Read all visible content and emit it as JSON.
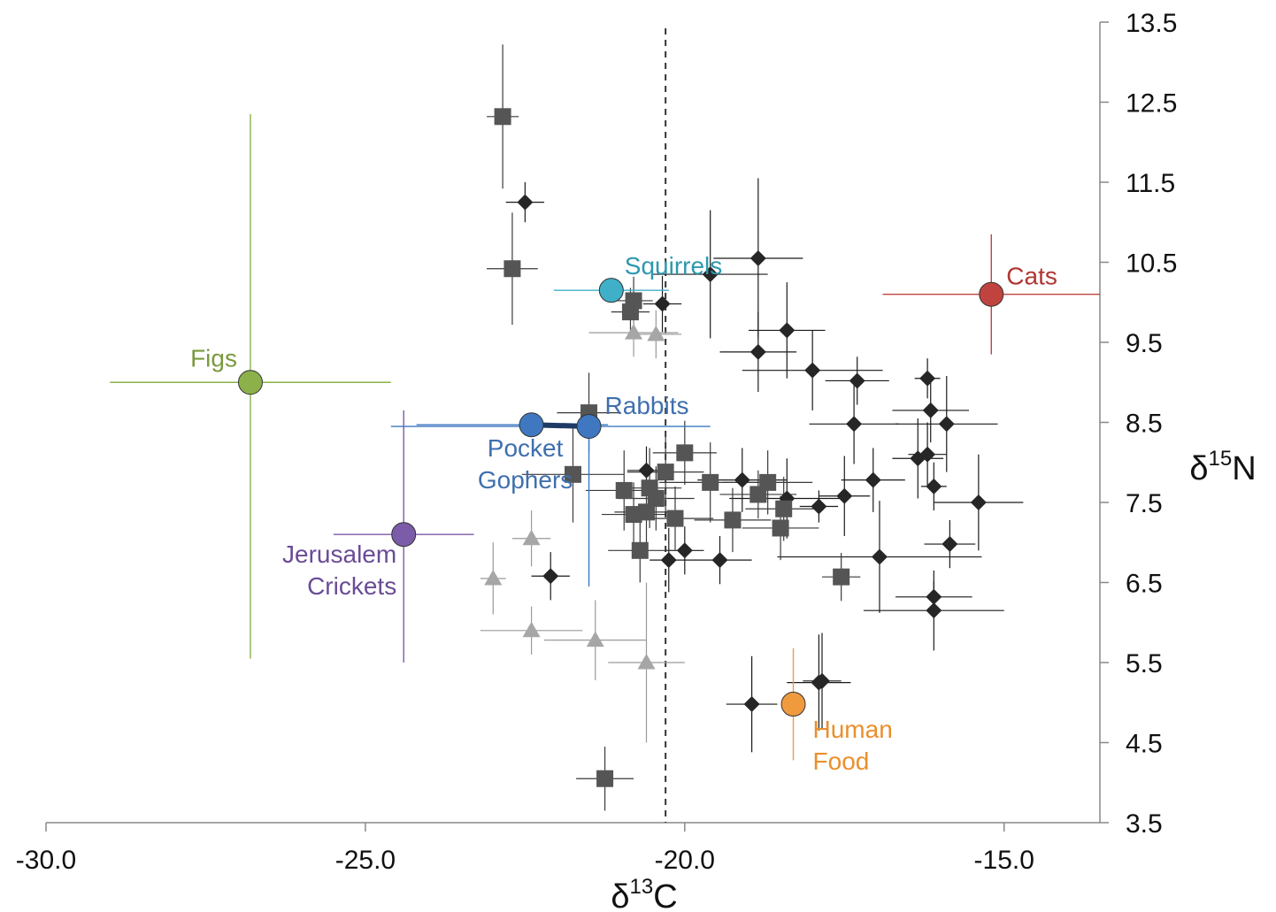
{
  "chart_data": {
    "type": "scatter",
    "xlabel": {
      "base": "δ",
      "sup": "13",
      "rest": "C"
    },
    "ylabel": {
      "base": "δ",
      "sup": "15",
      "rest": "N"
    },
    "xlim": [
      -30,
      -13.5
    ],
    "ylim": [
      3.5,
      13.5
    ],
    "x_ticks": [
      -30,
      -25,
      -20,
      -15
    ],
    "x_tick_labels": [
      "-30.0",
      "-25.0",
      "-20.0",
      "-15.0"
    ],
    "y_ticks": [
      3.5,
      4.5,
      5.5,
      6.5,
      7.5,
      8.5,
      9.5,
      10.5,
      11.5,
      12.5,
      13.5
    ],
    "y_tick_labels": [
      "3.5",
      "4.5",
      "5.5",
      "6.5",
      "7.5",
      "8.5",
      "9.5",
      "10.5",
      "11.5",
      "12.5",
      "13.5"
    ],
    "reference_line_x": -20.3,
    "grid": false,
    "legend": "none",
    "colors": {
      "diamond": "#262626",
      "square": "#555555",
      "triangle": "#a6a6a6",
      "figs": "#8cb04a",
      "squirrels": "#3fb0c8",
      "cats": "#c0433f",
      "rabbits": "#3f78c0",
      "crickets": "#7b5ca8",
      "human_food": "#f09a3e"
    },
    "groups": [
      {
        "name": "Figs",
        "label_lines": [
          "Figs"
        ],
        "color": "#8cb04a",
        "label_color": "#7a9a3e",
        "x": -26.8,
        "y": 9.0,
        "x_err_low": 2.2,
        "x_err_high": 2.2,
        "y_err_low": 3.45,
        "y_err_high": 3.35
      },
      {
        "name": "Squirrels",
        "label_lines": [
          "Squirrels"
        ],
        "color": "#3fb0c8",
        "label_color": "#2e98ae",
        "x": -21.15,
        "y": 10.15,
        "x_err_low": 0.9,
        "x_err_high": 0.9,
        "y_err_low": 0.0,
        "y_err_high": 0.0
      },
      {
        "name": "Cats",
        "label_lines": [
          "Cats"
        ],
        "color": "#c0433f",
        "label_color": "#b03632",
        "x": -15.2,
        "y": 10.1,
        "x_err_low": 1.7,
        "x_err_high": 1.7,
        "y_err_low": 0.75,
        "y_err_high": 0.75
      },
      {
        "name": "Rabbits",
        "label_lines": [
          "Rabbits"
        ],
        "color": "#3f78c0",
        "label_color": "#3f6fae",
        "x": -21.5,
        "y": 8.45,
        "x_err_low": 3.1,
        "x_err_high": 1.9,
        "y_err_low": 2.0,
        "y_err_high": 0.0
      },
      {
        "name": "Pocket Gophers",
        "label_lines": [
          "Pocket",
          "Gophers"
        ],
        "color": "#3f78c0",
        "label_color": "#3f6fae",
        "x": -22.4,
        "y": 8.47,
        "x_err_low": 1.8,
        "x_err_high": 1.2,
        "y_err_low": 0.0,
        "y_err_high": 0.0
      },
      {
        "name": "Jerusalem Crickets",
        "label_lines": [
          "Jerusalem",
          "Crickets"
        ],
        "color": "#7b5ca8",
        "label_color": "#6a4c96",
        "x": -24.4,
        "y": 7.1,
        "x_err_low": 1.1,
        "x_err_high": 1.1,
        "y_err_low": 1.6,
        "y_err_high": 1.55
      },
      {
        "name": "Human Food",
        "label_lines": [
          "Human",
          "Food"
        ],
        "color": "#f09a3e",
        "label_color": "#ea8f2c",
        "x": -18.3,
        "y": 4.98,
        "x_err_low": 0.0,
        "x_err_high": 0.0,
        "y_err_low": 0.7,
        "y_err_high": 0.7
      }
    ],
    "links": [
      {
        "from": "Pocket Gophers",
        "to": "Rabbits",
        "color": "#1f3a66"
      }
    ],
    "series": [
      {
        "marker": "diamond",
        "points": [
          {
            "x": -22.5,
            "y": 11.25,
            "xe": 0.3,
            "ye": 0.25
          },
          {
            "x": -20.35,
            "y": 9.98,
            "xe": 0.3,
            "ye": 0.35
          },
          {
            "x": -19.6,
            "y": 10.35,
            "xe": 0.9,
            "ye": 0.8
          },
          {
            "x": -18.85,
            "y": 10.55,
            "xe": 0.7,
            "ye": 1.0
          },
          {
            "x": -18.4,
            "y": 9.65,
            "xe": 0.6,
            "ye": 0.6
          },
          {
            "x": -18.85,
            "y": 9.38,
            "xe": 0.6,
            "ye": 0.5
          },
          {
            "x": -18.0,
            "y": 9.15,
            "xe": 1.1,
            "ye": 0.5
          },
          {
            "x": -17.3,
            "y": 9.02,
            "xe": 0.5,
            "ye": 0.3
          },
          {
            "x": -16.2,
            "y": 9.05,
            "xe": 0.2,
            "ye": 0.25
          },
          {
            "x": -16.15,
            "y": 8.65,
            "xe": 0.6,
            "ye": 0.4
          },
          {
            "x": -17.35,
            "y": 8.48,
            "xe": 0.7,
            "ye": 0.5
          },
          {
            "x": -15.9,
            "y": 8.48,
            "xe": 0.8,
            "ye": 0.6
          },
          {
            "x": -16.35,
            "y": 8.05,
            "xe": 0.4,
            "ye": 0.5
          },
          {
            "x": -16.2,
            "y": 8.1,
            "xe": 0.3,
            "ye": 0.4
          },
          {
            "x": -16.1,
            "y": 7.7,
            "xe": 0.2,
            "ye": 0.3
          },
          {
            "x": -17.05,
            "y": 7.78,
            "xe": 0.5,
            "ye": 0.4
          },
          {
            "x": -17.5,
            "y": 7.58,
            "xe": 0.4,
            "ye": 0.5
          },
          {
            "x": -17.9,
            "y": 7.45,
            "xe": 0.3,
            "ye": 0.2
          },
          {
            "x": -15.4,
            "y": 7.5,
            "xe": 0.7,
            "ye": 0.6
          },
          {
            "x": -20.6,
            "y": 7.9,
            "xe": 0.3,
            "ye": 0.3
          },
          {
            "x": -19.1,
            "y": 7.78,
            "xe": 0.7,
            "ye": 0.4
          },
          {
            "x": -18.4,
            "y": 7.55,
            "xe": 0.9,
            "ye": 0.5
          },
          {
            "x": -15.85,
            "y": 6.98,
            "xe": 0.4,
            "ye": 0.3
          },
          {
            "x": -16.95,
            "y": 6.82,
            "xe": 1.6,
            "ye": 0.7
          },
          {
            "x": -16.1,
            "y": 6.32,
            "xe": 0.6,
            "ye": 0.2
          },
          {
            "x": -16.1,
            "y": 6.15,
            "xe": 1.1,
            "ye": 0.5
          },
          {
            "x": -20.25,
            "y": 6.78,
            "xe": 0.3,
            "ye": 0.4
          },
          {
            "x": -20.0,
            "y": 6.9,
            "xe": 0.3,
            "ye": 0.3
          },
          {
            "x": -19.45,
            "y": 6.78,
            "xe": 0.5,
            "ye": 0.3
          },
          {
            "x": -22.1,
            "y": 6.58,
            "xe": 0.3,
            "ye": 0.3
          },
          {
            "x": -17.9,
            "y": 5.25,
            "xe": 0.5,
            "ye": 0.6
          },
          {
            "x": -17.85,
            "y": 5.27,
            "xe": 0.3,
            "ye": 0.6
          },
          {
            "x": -18.95,
            "y": 4.98,
            "xe": 0.4,
            "ye": 0.6
          }
        ]
      },
      {
        "marker": "square",
        "points": [
          {
            "x": -22.85,
            "y": 12.32,
            "xe": 0.25,
            "ye": 0.9
          },
          {
            "x": -22.7,
            "y": 10.42,
            "xe": 0.4,
            "ye": 0.7
          },
          {
            "x": -20.8,
            "y": 10.02,
            "xe": 0.3,
            "ye": 0.3
          },
          {
            "x": -20.85,
            "y": 9.88,
            "xe": 0.3,
            "ye": 0.3
          },
          {
            "x": -21.5,
            "y": 8.62,
            "xe": 0.5,
            "ye": 0.5
          },
          {
            "x": -20.0,
            "y": 8.12,
            "xe": 0.5,
            "ye": 0.4
          },
          {
            "x": -21.75,
            "y": 7.85,
            "xe": 0.8,
            "ye": 0.6
          },
          {
            "x": -20.3,
            "y": 7.88,
            "xe": 0.6,
            "ye": 0.5
          },
          {
            "x": -19.6,
            "y": 7.75,
            "xe": 0.8,
            "ye": 0.5
          },
          {
            "x": -18.7,
            "y": 7.75,
            "xe": 0.7,
            "ye": 0.4
          },
          {
            "x": -20.95,
            "y": 7.65,
            "xe": 0.6,
            "ye": 0.5
          },
          {
            "x": -20.55,
            "y": 7.68,
            "xe": 0.5,
            "ye": 0.5
          },
          {
            "x": -20.45,
            "y": 7.55,
            "xe": 0.6,
            "ye": 0.4
          },
          {
            "x": -18.85,
            "y": 7.6,
            "xe": 0.6,
            "ye": 0.3
          },
          {
            "x": -20.6,
            "y": 7.38,
            "xe": 0.5,
            "ye": 0.4
          },
          {
            "x": -20.8,
            "y": 7.35,
            "xe": 0.5,
            "ye": 0.4
          },
          {
            "x": -18.45,
            "y": 7.42,
            "xe": 0.6,
            "ye": 0.4
          },
          {
            "x": -20.15,
            "y": 7.3,
            "xe": 0.6,
            "ye": 0.4
          },
          {
            "x": -19.25,
            "y": 7.28,
            "xe": 0.6,
            "ye": 0.4
          },
          {
            "x": -18.5,
            "y": 7.18,
            "xe": 0.6,
            "ye": 0.4
          },
          {
            "x": -20.7,
            "y": 6.9,
            "xe": 0.5,
            "ye": 0.4
          },
          {
            "x": -17.55,
            "y": 6.57,
            "xe": 0.3,
            "ye": 0.3
          },
          {
            "x": -21.25,
            "y": 4.05,
            "xe": 0.45,
            "ye": 0.4
          }
        ]
      },
      {
        "marker": "triangle",
        "points": [
          {
            "x": -20.8,
            "y": 9.62,
            "xe": 0.7,
            "ye": 0.3
          },
          {
            "x": -20.45,
            "y": 9.6,
            "xe": 0.4,
            "ye": 0.3
          },
          {
            "x": -22.4,
            "y": 7.05,
            "xe": 0.3,
            "ye": 0.35
          },
          {
            "x": -23.0,
            "y": 6.55,
            "xe": 0.2,
            "ye": 0.45
          },
          {
            "x": -22.4,
            "y": 5.9,
            "xe": 0.8,
            "ye": 0.3
          },
          {
            "x": -21.4,
            "y": 5.78,
            "xe": 0.8,
            "ye": 0.5
          },
          {
            "x": -20.6,
            "y": 5.5,
            "xe": 0.6,
            "ye": 1.0
          }
        ]
      }
    ]
  }
}
